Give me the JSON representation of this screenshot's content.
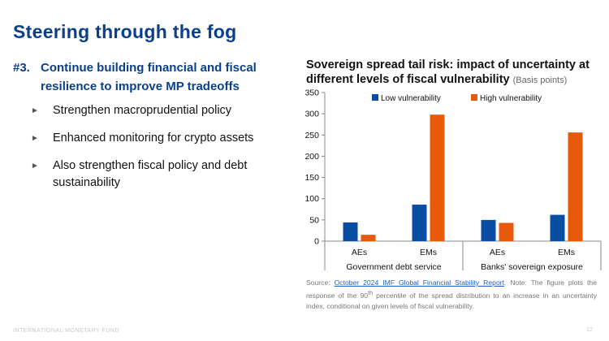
{
  "slide": {
    "title": "Steering through the fog",
    "heading_number": "#3.",
    "heading_text": "Continue building financial and fiscal resilience to improve MP tradeoffs",
    "bullets": [
      "Strengthen macroprudential policy",
      "Enhanced monitoring for crypto assets",
      "Also strengthen fiscal policy and debt sustainability"
    ],
    "bullet_marker": "►",
    "footer": "INTERNATIONAL MONETARY FUND",
    "page_number": "12"
  },
  "chart_title": {
    "main": "Sovereign spread tail risk: impact of uncertainty at different levels of fiscal vulnerability",
    "unit": "(Basis points)"
  },
  "source": {
    "prefix": "Source: ",
    "link_text": "October 2024 IMF Global Financial Stability Report",
    "note_part1": ". Note: The figure plots the response of the 90",
    "note_sup": "th",
    "note_part2": " percentile of the spread distribution to an increase in an uncertainty index, conditional on given levels of fiscal vulnerability."
  },
  "chart_data": {
    "type": "bar",
    "categories": [
      "AEs",
      "EMs",
      "AEs",
      "EMs"
    ],
    "groups": [
      "Government debt service",
      "Banks' sovereign exposure"
    ],
    "group_spans": [
      2,
      2
    ],
    "series": [
      {
        "name": "Low vulnerability",
        "color": "#0a4ea3",
        "values": [
          44,
          86,
          50,
          62
        ]
      },
      {
        "name": "High vulnerability",
        "color": "#e8590c",
        "values": [
          15,
          298,
          43,
          256
        ]
      }
    ],
    "yticks": [
      0,
      50,
      100,
      150,
      200,
      250,
      300,
      350
    ],
    "ylim": [
      0,
      350
    ],
    "grid": false,
    "legend_position": "top"
  }
}
